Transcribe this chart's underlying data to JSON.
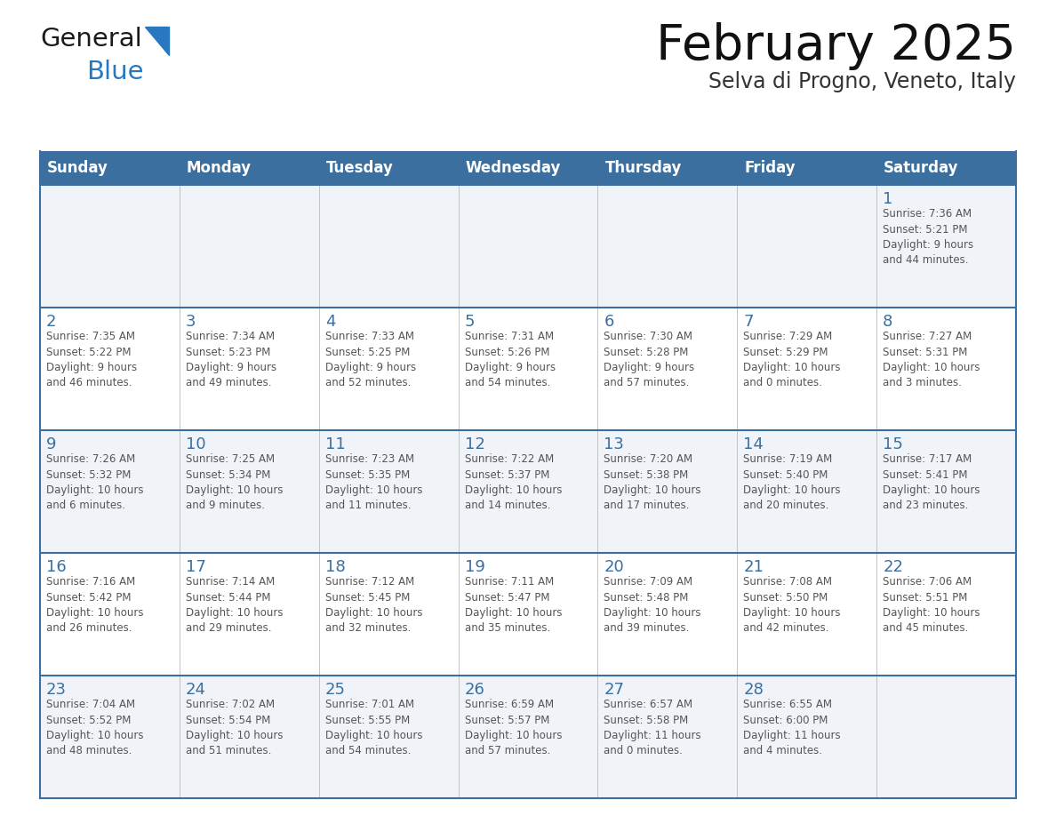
{
  "title": "February 2025",
  "subtitle": "Selva di Progno, Veneto, Italy",
  "days_of_week": [
    "Sunday",
    "Monday",
    "Tuesday",
    "Wednesday",
    "Thursday",
    "Friday",
    "Saturday"
  ],
  "header_bg": "#3a6f9f",
  "header_text": "#ffffff",
  "cell_bg_odd": "#f0f4f8",
  "cell_bg_even": "#ffffff",
  "border_color": "#3a6f9f",
  "day_number_color": "#3a6f9f",
  "text_color": "#555555",
  "logo_general_color": "#1a1a1a",
  "logo_blue_color": "#2878c0",
  "calendar_data": [
    [
      {
        "day": null,
        "sunrise": null,
        "sunset": null,
        "daylight": null
      },
      {
        "day": null,
        "sunrise": null,
        "sunset": null,
        "daylight": null
      },
      {
        "day": null,
        "sunrise": null,
        "sunset": null,
        "daylight": null
      },
      {
        "day": null,
        "sunrise": null,
        "sunset": null,
        "daylight": null
      },
      {
        "day": null,
        "sunrise": null,
        "sunset": null,
        "daylight": null
      },
      {
        "day": null,
        "sunrise": null,
        "sunset": null,
        "daylight": null
      },
      {
        "day": 1,
        "sunrise": "7:36 AM",
        "sunset": "5:21 PM",
        "daylight": "9 hours\nand 44 minutes."
      }
    ],
    [
      {
        "day": 2,
        "sunrise": "7:35 AM",
        "sunset": "5:22 PM",
        "daylight": "9 hours\nand 46 minutes."
      },
      {
        "day": 3,
        "sunrise": "7:34 AM",
        "sunset": "5:23 PM",
        "daylight": "9 hours\nand 49 minutes."
      },
      {
        "day": 4,
        "sunrise": "7:33 AM",
        "sunset": "5:25 PM",
        "daylight": "9 hours\nand 52 minutes."
      },
      {
        "day": 5,
        "sunrise": "7:31 AM",
        "sunset": "5:26 PM",
        "daylight": "9 hours\nand 54 minutes."
      },
      {
        "day": 6,
        "sunrise": "7:30 AM",
        "sunset": "5:28 PM",
        "daylight": "9 hours\nand 57 minutes."
      },
      {
        "day": 7,
        "sunrise": "7:29 AM",
        "sunset": "5:29 PM",
        "daylight": "10 hours\nand 0 minutes."
      },
      {
        "day": 8,
        "sunrise": "7:27 AM",
        "sunset": "5:31 PM",
        "daylight": "10 hours\nand 3 minutes."
      }
    ],
    [
      {
        "day": 9,
        "sunrise": "7:26 AM",
        "sunset": "5:32 PM",
        "daylight": "10 hours\nand 6 minutes."
      },
      {
        "day": 10,
        "sunrise": "7:25 AM",
        "sunset": "5:34 PM",
        "daylight": "10 hours\nand 9 minutes."
      },
      {
        "day": 11,
        "sunrise": "7:23 AM",
        "sunset": "5:35 PM",
        "daylight": "10 hours\nand 11 minutes."
      },
      {
        "day": 12,
        "sunrise": "7:22 AM",
        "sunset": "5:37 PM",
        "daylight": "10 hours\nand 14 minutes."
      },
      {
        "day": 13,
        "sunrise": "7:20 AM",
        "sunset": "5:38 PM",
        "daylight": "10 hours\nand 17 minutes."
      },
      {
        "day": 14,
        "sunrise": "7:19 AM",
        "sunset": "5:40 PM",
        "daylight": "10 hours\nand 20 minutes."
      },
      {
        "day": 15,
        "sunrise": "7:17 AM",
        "sunset": "5:41 PM",
        "daylight": "10 hours\nand 23 minutes."
      }
    ],
    [
      {
        "day": 16,
        "sunrise": "7:16 AM",
        "sunset": "5:42 PM",
        "daylight": "10 hours\nand 26 minutes."
      },
      {
        "day": 17,
        "sunrise": "7:14 AM",
        "sunset": "5:44 PM",
        "daylight": "10 hours\nand 29 minutes."
      },
      {
        "day": 18,
        "sunrise": "7:12 AM",
        "sunset": "5:45 PM",
        "daylight": "10 hours\nand 32 minutes."
      },
      {
        "day": 19,
        "sunrise": "7:11 AM",
        "sunset": "5:47 PM",
        "daylight": "10 hours\nand 35 minutes."
      },
      {
        "day": 20,
        "sunrise": "7:09 AM",
        "sunset": "5:48 PM",
        "daylight": "10 hours\nand 39 minutes."
      },
      {
        "day": 21,
        "sunrise": "7:08 AM",
        "sunset": "5:50 PM",
        "daylight": "10 hours\nand 42 minutes."
      },
      {
        "day": 22,
        "sunrise": "7:06 AM",
        "sunset": "5:51 PM",
        "daylight": "10 hours\nand 45 minutes."
      }
    ],
    [
      {
        "day": 23,
        "sunrise": "7:04 AM",
        "sunset": "5:52 PM",
        "daylight": "10 hours\nand 48 minutes."
      },
      {
        "day": 24,
        "sunrise": "7:02 AM",
        "sunset": "5:54 PM",
        "daylight": "10 hours\nand 51 minutes."
      },
      {
        "day": 25,
        "sunrise": "7:01 AM",
        "sunset": "5:55 PM",
        "daylight": "10 hours\nand 54 minutes."
      },
      {
        "day": 26,
        "sunrise": "6:59 AM",
        "sunset": "5:57 PM",
        "daylight": "10 hours\nand 57 minutes."
      },
      {
        "day": 27,
        "sunrise": "6:57 AM",
        "sunset": "5:58 PM",
        "daylight": "11 hours\nand 0 minutes."
      },
      {
        "day": 28,
        "sunrise": "6:55 AM",
        "sunset": "6:00 PM",
        "daylight": "11 hours\nand 4 minutes."
      },
      {
        "day": null,
        "sunrise": null,
        "sunset": null,
        "daylight": null
      }
    ]
  ],
  "fig_width": 11.88,
  "fig_height": 9.18,
  "dpi": 100
}
